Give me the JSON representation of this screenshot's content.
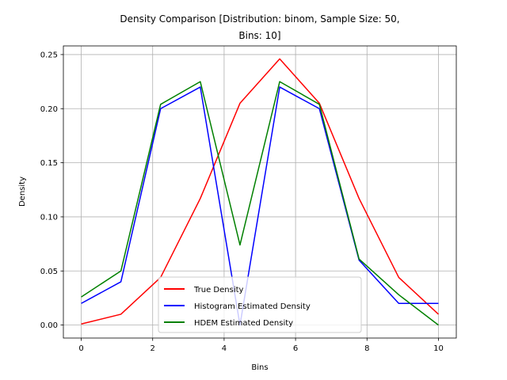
{
  "chart_data": {
    "type": "line",
    "title_lines": [
      "Density Comparison [Distribution: binom, Sample Size: 50,",
      "Bins: 10]"
    ],
    "xlabel": "Bins",
    "ylabel": "Density",
    "xlim": [
      -0.5,
      10.5
    ],
    "ylim": [
      -0.012,
      0.258
    ],
    "xticks": [
      0,
      2,
      4,
      6,
      8,
      10
    ],
    "xtick_labels": [
      "0",
      "2",
      "4",
      "6",
      "8",
      "10"
    ],
    "yticks": [
      0.0,
      0.05,
      0.1,
      0.15,
      0.2,
      0.25
    ],
    "ytick_labels": [
      "0.00",
      "0.05",
      "0.10",
      "0.15",
      "0.20",
      "0.25"
    ],
    "grid": true,
    "legend_position": "lower-center",
    "x": [
      0,
      1.111,
      2.222,
      3.333,
      4.444,
      5.556,
      6.667,
      7.778,
      8.889,
      10
    ],
    "series": [
      {
        "name": "True Density",
        "color": "#ff0000",
        "values": [
          0.001,
          0.01,
          0.044,
          0.117,
          0.205,
          0.246,
          0.205,
          0.117,
          0.044,
          0.01
        ]
      },
      {
        "name": "Histogram Estimated Density",
        "color": "#0000ff",
        "values": [
          0.02,
          0.04,
          0.2,
          0.22,
          0.0,
          0.22,
          0.2,
          0.06,
          0.02,
          0.02
        ]
      },
      {
        "name": "HDEM Estimated Density",
        "color": "#008000",
        "values": [
          0.026,
          0.05,
          0.204,
          0.225,
          0.074,
          0.225,
          0.204,
          0.061,
          0.028,
          0.0
        ]
      }
    ]
  }
}
